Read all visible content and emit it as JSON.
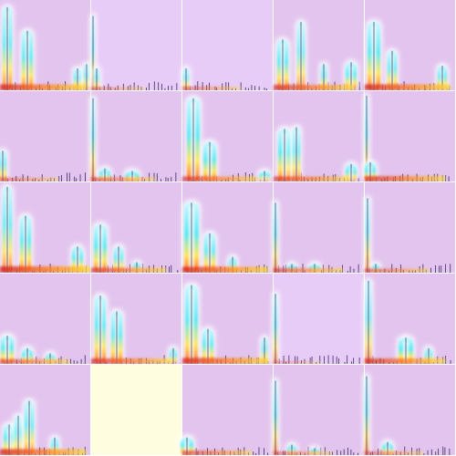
{
  "colors": {
    "panel_background": "#e2c4ee",
    "panel_background_alt": "#e8ccf8",
    "panel_background_empty": "#fffde0",
    "stem": "#3a2a6a",
    "glow_outer": "#ffffff",
    "glow_mid": "#bff7ff",
    "glow_inner": "#38e6f2",
    "base_hot": [
      "#d21e1e",
      "#ff7a1a",
      "#ffe23a"
    ]
  },
  "chart_data": {
    "type": "grid of spectrum-like heat-glow bar panels",
    "rows": 5,
    "cols": 5,
    "title": "",
    "xlabel": "",
    "ylabel": "",
    "ylim": [
      0,
      1
    ],
    "panels": [
      {
        "id": "r1c1",
        "background": "panel_background",
        "peaks": [
          {
            "x": 0.08,
            "y": 0.95,
            "w": 0.1
          },
          {
            "x": 0.3,
            "y": 0.68,
            "w": 0.12
          },
          {
            "x": 0.85,
            "y": 0.25,
            "w": 0.08
          },
          {
            "x": 0.95,
            "y": 0.3,
            "w": 0.06
          }
        ],
        "base_heat": 0.9
      },
      {
        "id": "r1c2",
        "background": "panel_background_alt",
        "peaks": [
          {
            "x": 0.02,
            "y": 0.85,
            "w": 0.02
          },
          {
            "x": 0.06,
            "y": 0.25,
            "w": 0.05
          }
        ],
        "base_heat": 0.3
      },
      {
        "id": "r1c3",
        "background": "panel_background_alt",
        "peaks": [
          {
            "x": 0.04,
            "y": 0.25,
            "w": 0.06
          }
        ],
        "base_heat": 0.4
      },
      {
        "id": "r1c4",
        "background": "panel_background",
        "peaks": [
          {
            "x": 0.1,
            "y": 0.58,
            "w": 0.12
          },
          {
            "x": 0.3,
            "y": 0.78,
            "w": 0.08
          },
          {
            "x": 0.55,
            "y": 0.3,
            "w": 0.06
          },
          {
            "x": 0.85,
            "y": 0.32,
            "w": 0.12
          }
        ],
        "base_heat": 0.8
      },
      {
        "id": "r1c5",
        "background": "panel_background",
        "peaks": [
          {
            "x": 0.1,
            "y": 0.78,
            "w": 0.14
          },
          {
            "x": 0.3,
            "y": 0.45,
            "w": 0.1
          },
          {
            "x": 0.85,
            "y": 0.28,
            "w": 0.1
          }
        ],
        "base_heat": 0.9
      },
      {
        "id": "r2c1",
        "background": "panel_background",
        "peaks": [
          {
            "x": 0.03,
            "y": 0.35,
            "w": 0.08
          }
        ],
        "base_heat": 0.4
      },
      {
        "id": "r2c2",
        "background": "panel_background",
        "peaks": [
          {
            "x": 0.02,
            "y": 0.95,
            "w": 0.04
          },
          {
            "x": 0.15,
            "y": 0.15,
            "w": 0.12
          },
          {
            "x": 0.45,
            "y": 0.12,
            "w": 0.15
          }
        ],
        "base_heat": 0.5
      },
      {
        "id": "r2c3",
        "background": "panel_background",
        "peaks": [
          {
            "x": 0.12,
            "y": 0.95,
            "w": 0.14
          },
          {
            "x": 0.3,
            "y": 0.45,
            "w": 0.14
          },
          {
            "x": 0.9,
            "y": 0.12,
            "w": 0.12
          }
        ],
        "base_heat": 0.7
      },
      {
        "id": "r2c4",
        "background": "panel_background",
        "peaks": [
          {
            "x": 0.12,
            "y": 0.6,
            "w": 0.14
          },
          {
            "x": 0.25,
            "y": 0.62,
            "w": 0.08
          },
          {
            "x": 0.85,
            "y": 0.2,
            "w": 0.12
          }
        ],
        "base_heat": 0.7
      },
      {
        "id": "r2c5",
        "background": "panel_background",
        "peaks": [
          {
            "x": 0.02,
            "y": 0.98,
            "w": 0.02
          },
          {
            "x": 0.06,
            "y": 0.22,
            "w": 0.12
          }
        ],
        "base_heat": 0.8
      },
      {
        "id": "r3c1",
        "background": "panel_background",
        "peaks": [
          {
            "x": 0.08,
            "y": 0.98,
            "w": 0.1
          },
          {
            "x": 0.28,
            "y": 0.65,
            "w": 0.12
          },
          {
            "x": 0.85,
            "y": 0.3,
            "w": 0.12
          }
        ],
        "base_heat": 1.0
      },
      {
        "id": "r3c2",
        "background": "panel_background",
        "peaks": [
          {
            "x": 0.1,
            "y": 0.55,
            "w": 0.14
          },
          {
            "x": 0.3,
            "y": 0.3,
            "w": 0.1
          },
          {
            "x": 0.5,
            "y": 0.12,
            "w": 0.08
          }
        ],
        "base_heat": 0.7
      },
      {
        "id": "r3c3",
        "background": "panel_background",
        "peaks": [
          {
            "x": 0.1,
            "y": 0.8,
            "w": 0.16
          },
          {
            "x": 0.3,
            "y": 0.45,
            "w": 0.12
          },
          {
            "x": 0.55,
            "y": 0.18,
            "w": 0.08
          }
        ],
        "base_heat": 0.9
      },
      {
        "id": "r3c4",
        "background": "panel_background",
        "peaks": [
          {
            "x": 0.02,
            "y": 0.8,
            "w": 0.04
          },
          {
            "x": 0.2,
            "y": 0.1,
            "w": 0.1
          },
          {
            "x": 0.45,
            "y": 0.1,
            "w": 0.12
          }
        ],
        "base_heat": 0.6
      },
      {
        "id": "r3c5",
        "background": "panel_background",
        "peaks": [
          {
            "x": 0.03,
            "y": 0.85,
            "w": 0.04
          },
          {
            "x": 0.12,
            "y": 0.1,
            "w": 0.08
          }
        ],
        "base_heat": 0.5
      },
      {
        "id": "r4c1",
        "background": "panel_background",
        "peaks": [
          {
            "x": 0.08,
            "y": 0.32,
            "w": 0.14
          },
          {
            "x": 0.3,
            "y": 0.18,
            "w": 0.12
          },
          {
            "x": 0.55,
            "y": 0.12,
            "w": 0.1
          }
        ],
        "base_heat": 0.6
      },
      {
        "id": "r4c2",
        "background": "panel_background",
        "peaks": [
          {
            "x": 0.1,
            "y": 0.78,
            "w": 0.12
          },
          {
            "x": 0.28,
            "y": 0.6,
            "w": 0.12
          },
          {
            "x": 0.9,
            "y": 0.18,
            "w": 0.08
          }
        ],
        "base_heat": 0.8
      },
      {
        "id": "r4c3",
        "background": "panel_background",
        "peaks": [
          {
            "x": 0.1,
            "y": 0.9,
            "w": 0.14
          },
          {
            "x": 0.28,
            "y": 0.4,
            "w": 0.12
          },
          {
            "x": 0.9,
            "y": 0.3,
            "w": 0.06
          }
        ],
        "base_heat": 0.9
      },
      {
        "id": "r4c4",
        "background": "panel_background_alt",
        "peaks": [
          {
            "x": 0.02,
            "y": 0.8,
            "w": 0.04
          }
        ],
        "base_heat": 0.2
      },
      {
        "id": "r4c5",
        "background": "panel_background",
        "peaks": [
          {
            "x": 0.04,
            "y": 0.95,
            "w": 0.06
          },
          {
            "x": 0.45,
            "y": 0.3,
            "w": 0.16
          },
          {
            "x": 0.7,
            "y": 0.18,
            "w": 0.08
          }
        ],
        "base_heat": 0.8
      },
      {
        "id": "r5c1",
        "background": "panel_background",
        "peaks": [
          {
            "x": 0.1,
            "y": 0.35,
            "w": 0.12
          },
          {
            "x": 0.2,
            "y": 0.45,
            "w": 0.08
          },
          {
            "x": 0.32,
            "y": 0.62,
            "w": 0.1
          },
          {
            "x": 0.6,
            "y": 0.2,
            "w": 0.08
          }
        ],
        "base_heat": 0.9
      },
      {
        "id": "r5c2",
        "background": "panel_background_empty",
        "peaks": [],
        "base_heat": 0.0
      },
      {
        "id": "r5c3",
        "background": "panel_background",
        "peaks": [
          {
            "x": 0.05,
            "y": 0.2,
            "w": 0.14
          }
        ],
        "base_heat": 0.6
      },
      {
        "id": "r5c4",
        "background": "panel_background",
        "peaks": [
          {
            "x": 0.02,
            "y": 0.85,
            "w": 0.04
          },
          {
            "x": 0.2,
            "y": 0.12,
            "w": 0.1
          },
          {
            "x": 0.45,
            "y": 0.08,
            "w": 0.1
          }
        ],
        "base_heat": 0.4
      },
      {
        "id": "r5c5",
        "background": "panel_background",
        "peaks": [
          {
            "x": 0.02,
            "y": 0.9,
            "w": 0.04
          },
          {
            "x": 0.25,
            "y": 0.15,
            "w": 0.12
          }
        ],
        "base_heat": 0.4
      }
    ]
  }
}
